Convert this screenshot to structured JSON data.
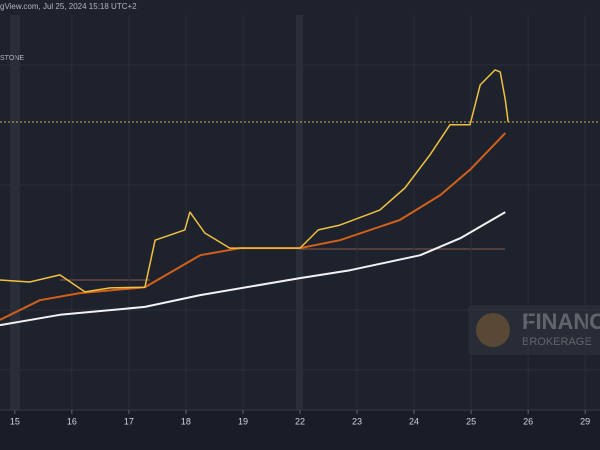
{
  "chart_data": {
    "type": "line",
    "header": "gView.com, Jul 25, 2024 15:18 UTC+2",
    "symbol_label": "STONE",
    "watermark": "FINANC",
    "watermark_sub": "BROKERAGE",
    "xlim": [
      -0.26,
      10.26
    ],
    "ylim": [
      0,
      100
    ],
    "xticks": [
      {
        "value": 0,
        "label": "15"
      },
      {
        "value": 1,
        "label": "16"
      },
      {
        "value": 2,
        "label": "17"
      },
      {
        "value": 3,
        "label": "18"
      },
      {
        "value": 4,
        "label": "19"
      },
      {
        "value": 5,
        "label": "22"
      },
      {
        "value": 6,
        "label": "23"
      },
      {
        "value": 7,
        "label": "24"
      },
      {
        "value": 8,
        "label": "25"
      },
      {
        "value": 9,
        "label": "26"
      },
      {
        "value": 10,
        "label": "29"
      }
    ],
    "grid": true,
    "price_line": 72.9,
    "series": [
      {
        "color": "#f0c040",
        "x": [
          -0.26,
          0.26,
          0.79,
          1.23,
          1.67,
          2.28,
          2.46,
          2.98,
          3.07,
          3.33,
          3.77,
          4.39,
          5.0,
          5.32,
          5.7,
          6.4,
          6.84,
          7.28,
          7.63,
          7.98,
          8.16,
          8.42,
          8.51,
          8.6,
          8.65
        ],
        "values": [
          32.9,
          32.4,
          34.2,
          29.9,
          30.9,
          31.1,
          43.0,
          45.6,
          50.1,
          44.8,
          41.0,
          41.0,
          41.0,
          45.6,
          46.8,
          50.6,
          56.2,
          64.6,
          72.2,
          72.2,
          82.3,
          86.1,
          85.6,
          78.5,
          72.9
        ]
      },
      {
        "color": "#d2601a",
        "x": [
          -0.26,
          0.44,
          1.14,
          2.28,
          3.25,
          3.95,
          5.0,
          5.7,
          6.75,
          7.46,
          7.98,
          8.6
        ],
        "values": [
          22.8,
          27.8,
          29.6,
          31.1,
          39.2,
          41.0,
          41.0,
          43.0,
          48.1,
          54.4,
          60.8,
          70.1
        ]
      },
      {
        "color": "#f2f2f2",
        "x": [
          -0.26,
          0.79,
          2.28,
          3.25,
          5.0,
          5.88,
          7.11,
          7.81,
          8.6
        ],
        "values": [
          21.5,
          24.1,
          26.1,
          29.1,
          33.4,
          35.4,
          39.2,
          43.5,
          50.1
        ]
      }
    ]
  }
}
